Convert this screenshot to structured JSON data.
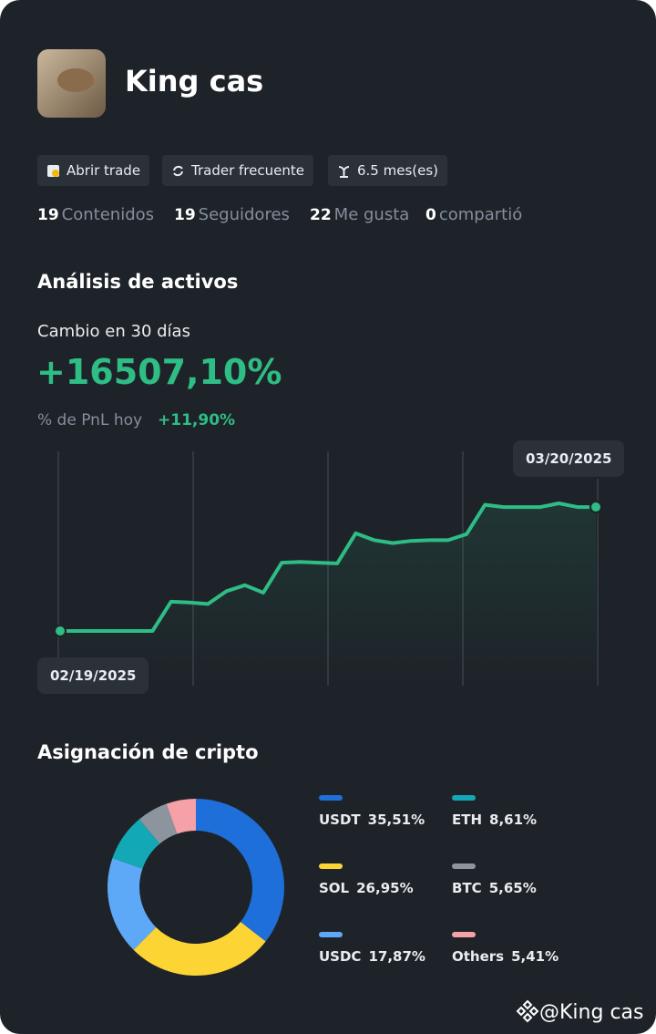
{
  "profile": {
    "name": "King cas",
    "badges": [
      "Abrir trade",
      "Trader frecuente",
      "6.5 mes(es)"
    ],
    "stats": [
      {
        "value": 19,
        "label": "Contenidos"
      },
      {
        "value": 19,
        "label": "Seguidores"
      },
      {
        "value": 22,
        "label": "Me gusta"
      },
      {
        "value": 0,
        "label": "compartió"
      }
    ]
  },
  "analysis": {
    "title": "Análisis de activos",
    "change_label": "Cambio en 30 días",
    "change": "+16507,10%",
    "pnl_label": "% de PnL hoy",
    "pnl": "+11,90%"
  },
  "chart_data": [
    {
      "type": "line",
      "color": "#2ebd85",
      "x": [
        "02/19/2025",
        null,
        null,
        null,
        null,
        null,
        null,
        null,
        null,
        null,
        null,
        null,
        null,
        null,
        null,
        null,
        null,
        null,
        null,
        null,
        null,
        null,
        null,
        null,
        null,
        null,
        null,
        null,
        null,
        "03/20/2025"
      ],
      "values": [
        0,
        0,
        0,
        0,
        0,
        0,
        3900,
        3800,
        3600,
        5300,
        6100,
        5100,
        9100,
        9200,
        9100,
        9000,
        13000,
        12100,
        11700,
        12000,
        12100,
        12100,
        12900,
        16800,
        16500,
        16500,
        16500,
        17000,
        16500,
        16507.1
      ]
    },
    {
      "type": "pie",
      "title": "Asignación de cripto",
      "categories": [
        "USDT",
        "SOL",
        "USDC",
        "ETH",
        "BTC",
        "Others"
      ],
      "values": [
        35.51,
        26.95,
        17.87,
        8.61,
        5.65,
        5.41
      ],
      "value_labels": [
        "35,51%",
        "26,95%",
        "17,87%",
        "8,61%",
        "5,65%",
        "5,41%"
      ],
      "colors": [
        "#1e6fd9",
        "#fcd535",
        "#5ea9f7",
        "#12a8b5",
        "#8c949e",
        "#f6a0a8"
      ]
    }
  ],
  "watermark": "@King cas"
}
